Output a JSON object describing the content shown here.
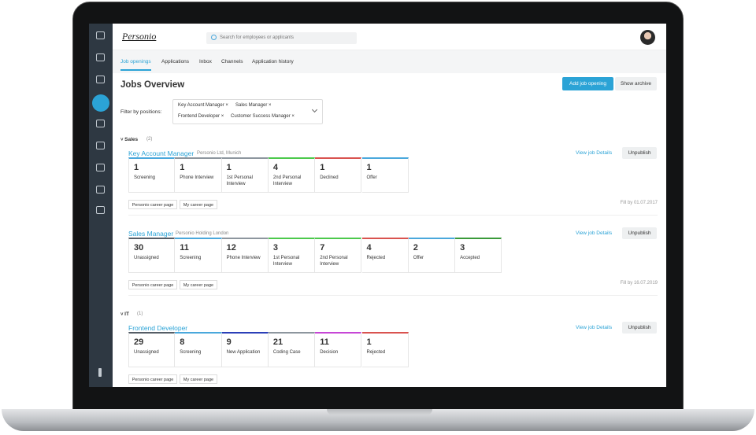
{
  "header": {
    "logo": "Personio",
    "search_placeholder": "Search for employees or applicants"
  },
  "tabs": [
    "Job openings",
    "Applications",
    "Inbox",
    "Channels",
    "Application history"
  ],
  "title": "Jobs Overview",
  "buttons": {
    "add": "Add job opening",
    "archive": "Show archive"
  },
  "filter": {
    "label": "Filter by positions:",
    "chips": [
      "Key Account Manager",
      "Sales Manager",
      "Frontend Developer",
      "Customer Success Manager"
    ]
  },
  "groups": [
    {
      "name": "Sales",
      "count": "(2)",
      "jobs": [
        {
          "title": "Key Account Manager",
          "company": "Personio Ltd, Munich",
          "link": "View job Details",
          "action": "Unpublish",
          "stages": [
            {
              "count": 1,
              "label": "Screening",
              "color": "#4aa8dc"
            },
            {
              "count": 1,
              "label": "Phone Interview",
              "color": "#8d969e"
            },
            {
              "count": 1,
              "label": "1st Personal Interview",
              "color": "#8d969e"
            },
            {
              "count": 4,
              "label": "2nd Personal Interview",
              "color": "#4cc94c"
            },
            {
              "count": 1,
              "label": "Declined",
              "color": "#d9534f"
            },
            {
              "count": 1,
              "label": "Offer",
              "color": "#4aa8dc"
            }
          ],
          "channels": [
            "Personio career page",
            "My career page"
          ],
          "fill_by": "Fill by 01.07.2017"
        },
        {
          "title": "Sales Manager",
          "company": "Personio Holding London",
          "link": "View job Details",
          "action": "Unpublish",
          "stages": [
            {
              "count": 30,
              "label": "Unassigned",
              "color": "#555d66"
            },
            {
              "count": 11,
              "label": "Screening",
              "color": "#4aa8dc"
            },
            {
              "count": 12,
              "label": "Phone Interview",
              "color": "#8d969e"
            },
            {
              "count": 3,
              "label": "1st Personal Interview",
              "color": "#4cc94c"
            },
            {
              "count": 7,
              "label": "2nd Personal Interview",
              "color": "#4cc94c"
            },
            {
              "count": 4,
              "label": "Rejected",
              "color": "#d9534f"
            },
            {
              "count": 2,
              "label": "Offer",
              "color": "#4aa8dc"
            },
            {
              "count": 3,
              "label": "Accepted",
              "color": "#3a9a3a"
            }
          ],
          "channels": [
            "Personio career page",
            "My career page"
          ],
          "fill_by": "Fill by 16.07.2019"
        }
      ]
    },
    {
      "name": "IT",
      "count": "(1)",
      "jobs": [
        {
          "title": "Frontend Developer",
          "link": "View job Details",
          "action": "Unpublish",
          "stages": [
            {
              "count": 29,
              "label": "Unassigned",
              "color": "#555d66"
            },
            {
              "count": 8,
              "label": "Screening",
              "color": "#4aa8dc"
            },
            {
              "count": 9,
              "label": "New Application",
              "color": "#2b3fb8"
            },
            {
              "count": 21,
              "label": "Coding Case",
              "color": "#8d969e"
            },
            {
              "count": 11,
              "label": "Decision",
              "color": "#c646d6"
            },
            {
              "count": 1,
              "label": "Rejected",
              "color": "#d9534f"
            }
          ],
          "channels": [
            "Personio career page",
            "My career page"
          ]
        }
      ]
    }
  ]
}
